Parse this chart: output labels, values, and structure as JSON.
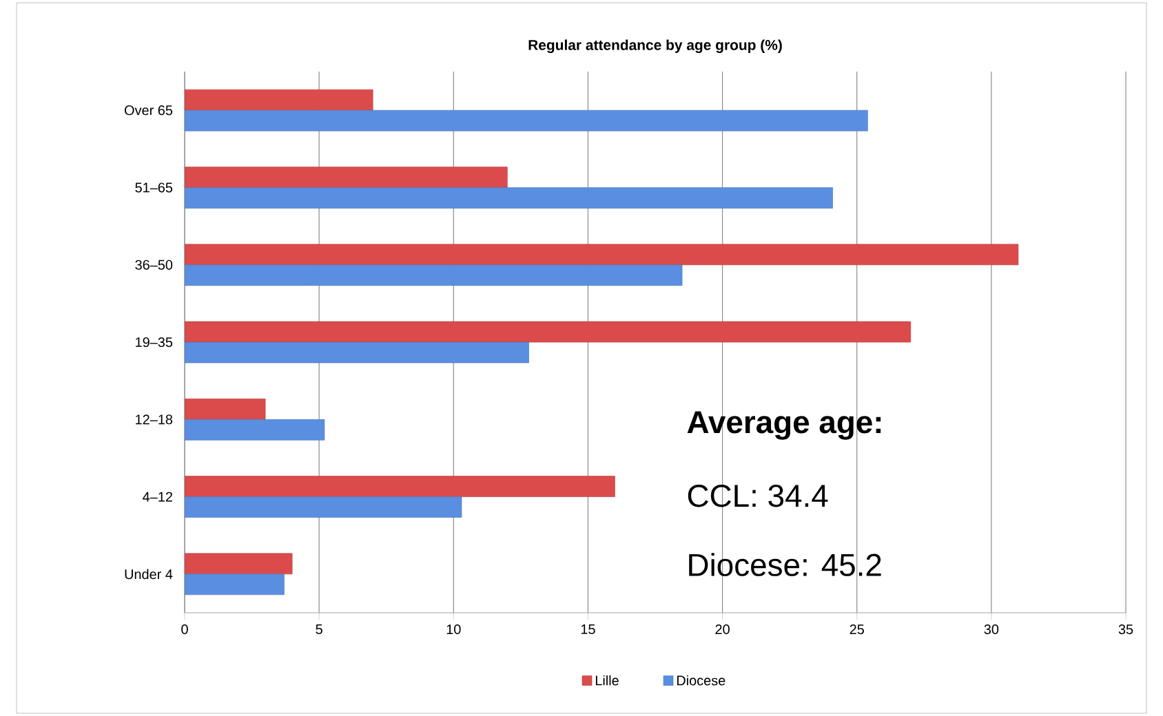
{
  "chart_data": {
    "type": "bar",
    "orientation": "horizontal",
    "title": "Regular attendance by age group (%)",
    "categories": [
      "Over 65",
      "51–65",
      "36–50",
      "19–35",
      "12–18",
      "4–12",
      "Under 4"
    ],
    "series": [
      {
        "name": "Lille",
        "color": "#dc4b4b",
        "values": [
          7.0,
          12.0,
          31.0,
          27.0,
          3.0,
          16.0,
          4.0
        ]
      },
      {
        "name": "Diocese",
        "color": "#5a8ee0",
        "values": [
          25.4,
          24.1,
          18.5,
          12.8,
          5.2,
          10.3,
          3.7
        ]
      }
    ],
    "xlim": [
      0,
      35
    ],
    "xticks": [
      0,
      5,
      10,
      15,
      20,
      25,
      30,
      35
    ],
    "grid": "x",
    "legend": "bottom",
    "annotations": [
      "Average age:",
      "CCL: 34.4",
      "Diocese: 45.2"
    ]
  }
}
